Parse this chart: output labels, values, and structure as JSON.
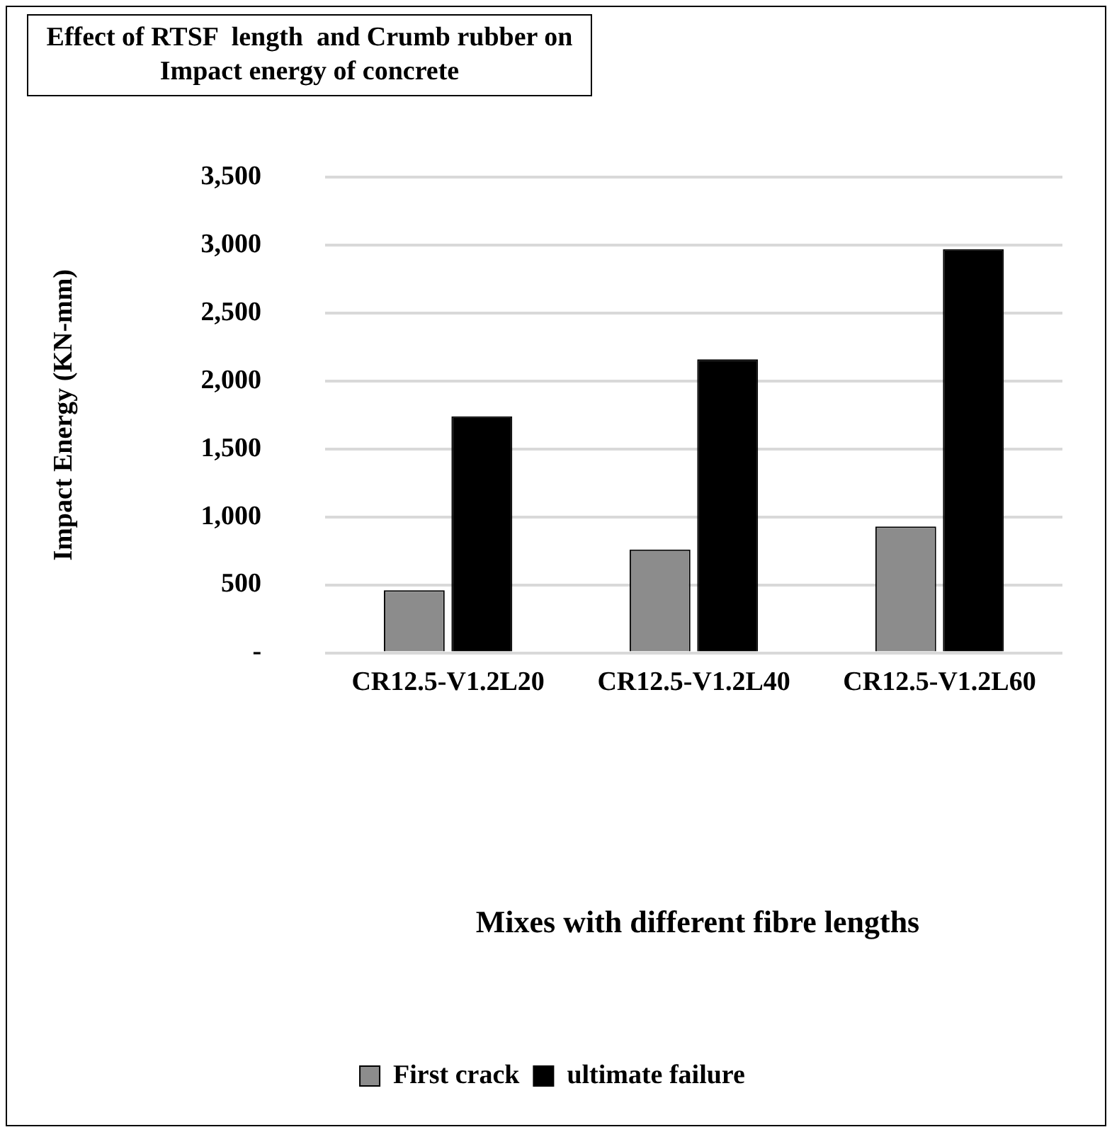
{
  "chart_data": {
    "type": "bar",
    "title": "Effect of RTSF  length  and Crumb rubber on Impact energy of concrete",
    "ylabel": "Impact Energy (KN-mm)",
    "annotations": [
      "Mixes with different fibre lengths"
    ],
    "categories": [
      "CR12.5-V1.2L20",
      "CR12.5-V1.2L40",
      "CR12.5-V1.2L60"
    ],
    "series": [
      {
        "name": "First crack",
        "color": "#8c8c8c",
        "values": [
          460,
          760,
          930
        ]
      },
      {
        "name": "ultimate failure",
        "color": "#000000",
        "values": [
          1740,
          2160,
          2970
        ]
      }
    ],
    "ylim": [
      0,
      3500
    ],
    "yticks": [
      {
        "value": 0,
        "label": "-"
      },
      500,
      {
        "value": 1000,
        "label": "1,000"
      },
      {
        "value": 1500,
        "label": "1,500"
      },
      {
        "value": 2000,
        "label": "2,000"
      },
      {
        "value": 2500,
        "label": "2,500"
      },
      {
        "value": 3000,
        "label": "3,000"
      },
      {
        "value": 3500,
        "label": "3,500"
      }
    ],
    "grid": "y",
    "legend": "bottom"
  }
}
